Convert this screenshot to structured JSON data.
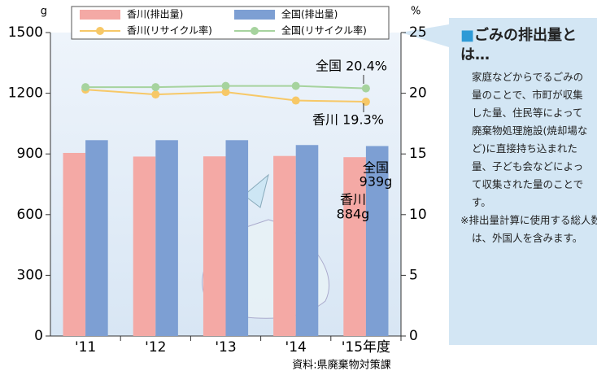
{
  "chart_data": {
    "type": "bar",
    "categories": [
      "'11",
      "'12",
      "'13",
      "'14",
      "'15年度"
    ],
    "y_unit": "g",
    "y2_unit": "%",
    "ylim": [
      0,
      1500
    ],
    "yticks": [
      0,
      300,
      600,
      900,
      1200,
      1500
    ],
    "y2lim": [
      0,
      25
    ],
    "y2ticks": [
      0,
      5,
      10,
      15,
      20,
      25
    ],
    "series": [
      {
        "name": "香川(排出量)",
        "type": "bar",
        "color": "#f4a9a5",
        "values": [
          905,
          887,
          888,
          890,
          884
        ]
      },
      {
        "name": "全国(排出量)",
        "type": "bar",
        "color": "#7d9fd3",
        "values": [
          968,
          968,
          968,
          944,
          939
        ]
      },
      {
        "name": "香川(リサイクル率)",
        "type": "line",
        "axis": "y2",
        "color": "#f7c867",
        "values": [
          20.3,
          19.9,
          20.1,
          19.4,
          19.3
        ]
      },
      {
        "name": "全国(リサイクル率)",
        "type": "line",
        "axis": "y2",
        "color": "#a6d39e",
        "values": [
          20.5,
          20.5,
          20.6,
          20.6,
          20.4
        ]
      }
    ],
    "annotations": [
      "全国 20.4%",
      "香川 19.3%",
      "全国",
      "939g",
      "香川",
      "884g"
    ],
    "source": "資料:県廃棄物対策課"
  },
  "side_panel": {
    "title": "ごみの排出量とは…",
    "body": "家庭などからでるごみの量のことで、市町が収集した量、住民等によって廃棄物処理施設(焼却場など)に直接持ち込まれた量、子ども会などによって収集された量のことです。",
    "note": "※排出量計算に使用する総人数は、外国人を含みます。"
  }
}
